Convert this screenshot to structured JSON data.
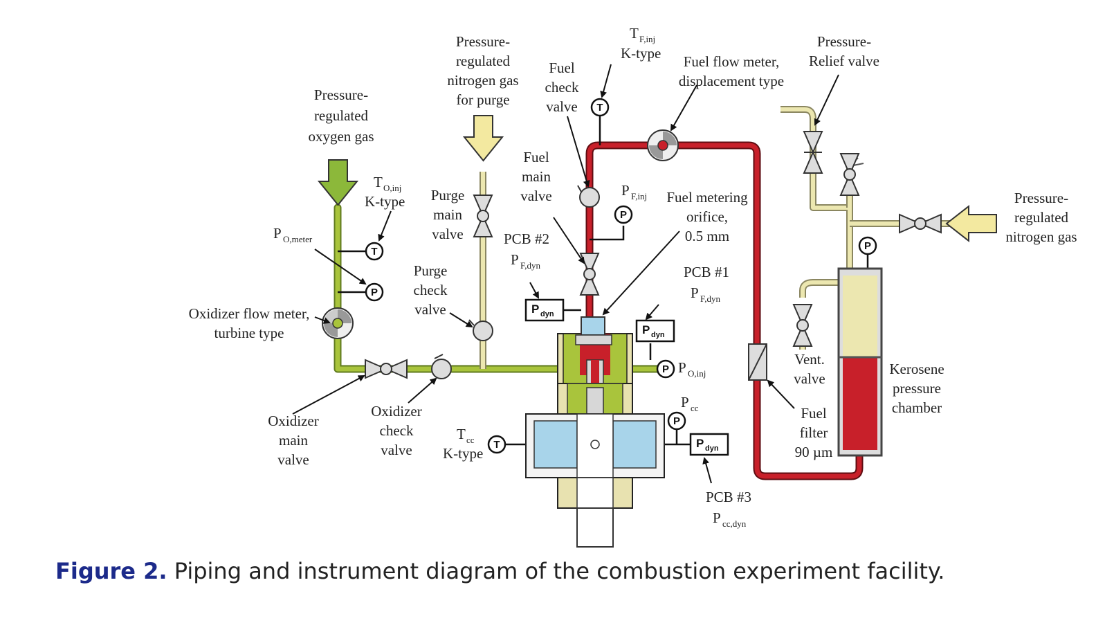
{
  "caption": {
    "label": "Figure 2.",
    "text": "Piping and instrument diagram of the combustion experiment facility."
  },
  "colors": {
    "oxygen_line": "#a9c43c",
    "fuel_line": "#c8202a",
    "nitrogen_line": "#ece7b0",
    "oxygen_arrow": "#8cb83a",
    "nitrogen_arrow": "#f3e9a0",
    "window": "#a8d4ea",
    "caption_label": "#1c2a8a"
  },
  "labels": {
    "oxygen_supply": [
      "Pressure-",
      "regulated",
      "oxygen gas"
    ],
    "nitrogen_purge_supply": [
      "Pressure-",
      "regulated",
      "nitrogen gas",
      "for purge"
    ],
    "t_o_inj": {
      "main": "T",
      "sub": "O,inj",
      "type": "K-type"
    },
    "p_o_meter": {
      "main": "P",
      "sub": "O,meter"
    },
    "oxidizer_flow_meter": [
      "Oxidizer flow meter,",
      "turbine type"
    ],
    "oxidizer_main_valve": [
      "Oxidizer",
      "main",
      "valve"
    ],
    "oxidizer_check_valve": [
      "Oxidizer",
      "check",
      "valve"
    ],
    "purge_main_valve": [
      "Purge",
      "main",
      "valve"
    ],
    "purge_check_valve": [
      "Purge",
      "check",
      "valve"
    ],
    "fuel_check_valve": [
      "Fuel",
      "check",
      "valve"
    ],
    "fuel_main_valve": [
      "Fuel",
      "main",
      "valve"
    ],
    "t_f_inj": {
      "main": "T",
      "sub": "F,inj",
      "type": "K-type"
    },
    "p_f_inj": {
      "main": "P",
      "sub": "F,inj"
    },
    "fuel_flow_meter": [
      "Fuel flow meter,",
      "displacement type"
    ],
    "fuel_metering_orifice": [
      "Fuel metering",
      "orifice,",
      "0.5 mm"
    ],
    "pcb2": {
      "name": "PCB #2",
      "main": "P",
      "sub": "F,dyn"
    },
    "pcb1": {
      "name": "PCB #1",
      "main": "P",
      "sub": "F,dyn"
    },
    "pcb3": {
      "name": "PCB #3",
      "main": "P",
      "sub": "cc,dyn"
    },
    "p_o_inj": {
      "main": "P",
      "sub": "O,inj"
    },
    "p_cc": {
      "main": "P",
      "sub": "cc"
    },
    "t_cc": {
      "main": "T",
      "sub": "cc",
      "type": "K-type"
    },
    "relief_valve": [
      "Pressure-",
      "Relief valve"
    ],
    "nitrogen_pressurant": [
      "Pressure-",
      "regulated",
      "nitrogen gas"
    ],
    "vent_valve": [
      "Vent.",
      "valve"
    ],
    "fuel_filter": [
      "Fuel",
      "filter",
      "90 µm"
    ],
    "kerosene_chamber": [
      "Kerosene",
      "pressure",
      "chamber"
    ],
    "pdyn_box": {
      "main": "P",
      "sub": "dyn"
    },
    "temp_symbol": "T",
    "pressure_symbol": "P"
  }
}
